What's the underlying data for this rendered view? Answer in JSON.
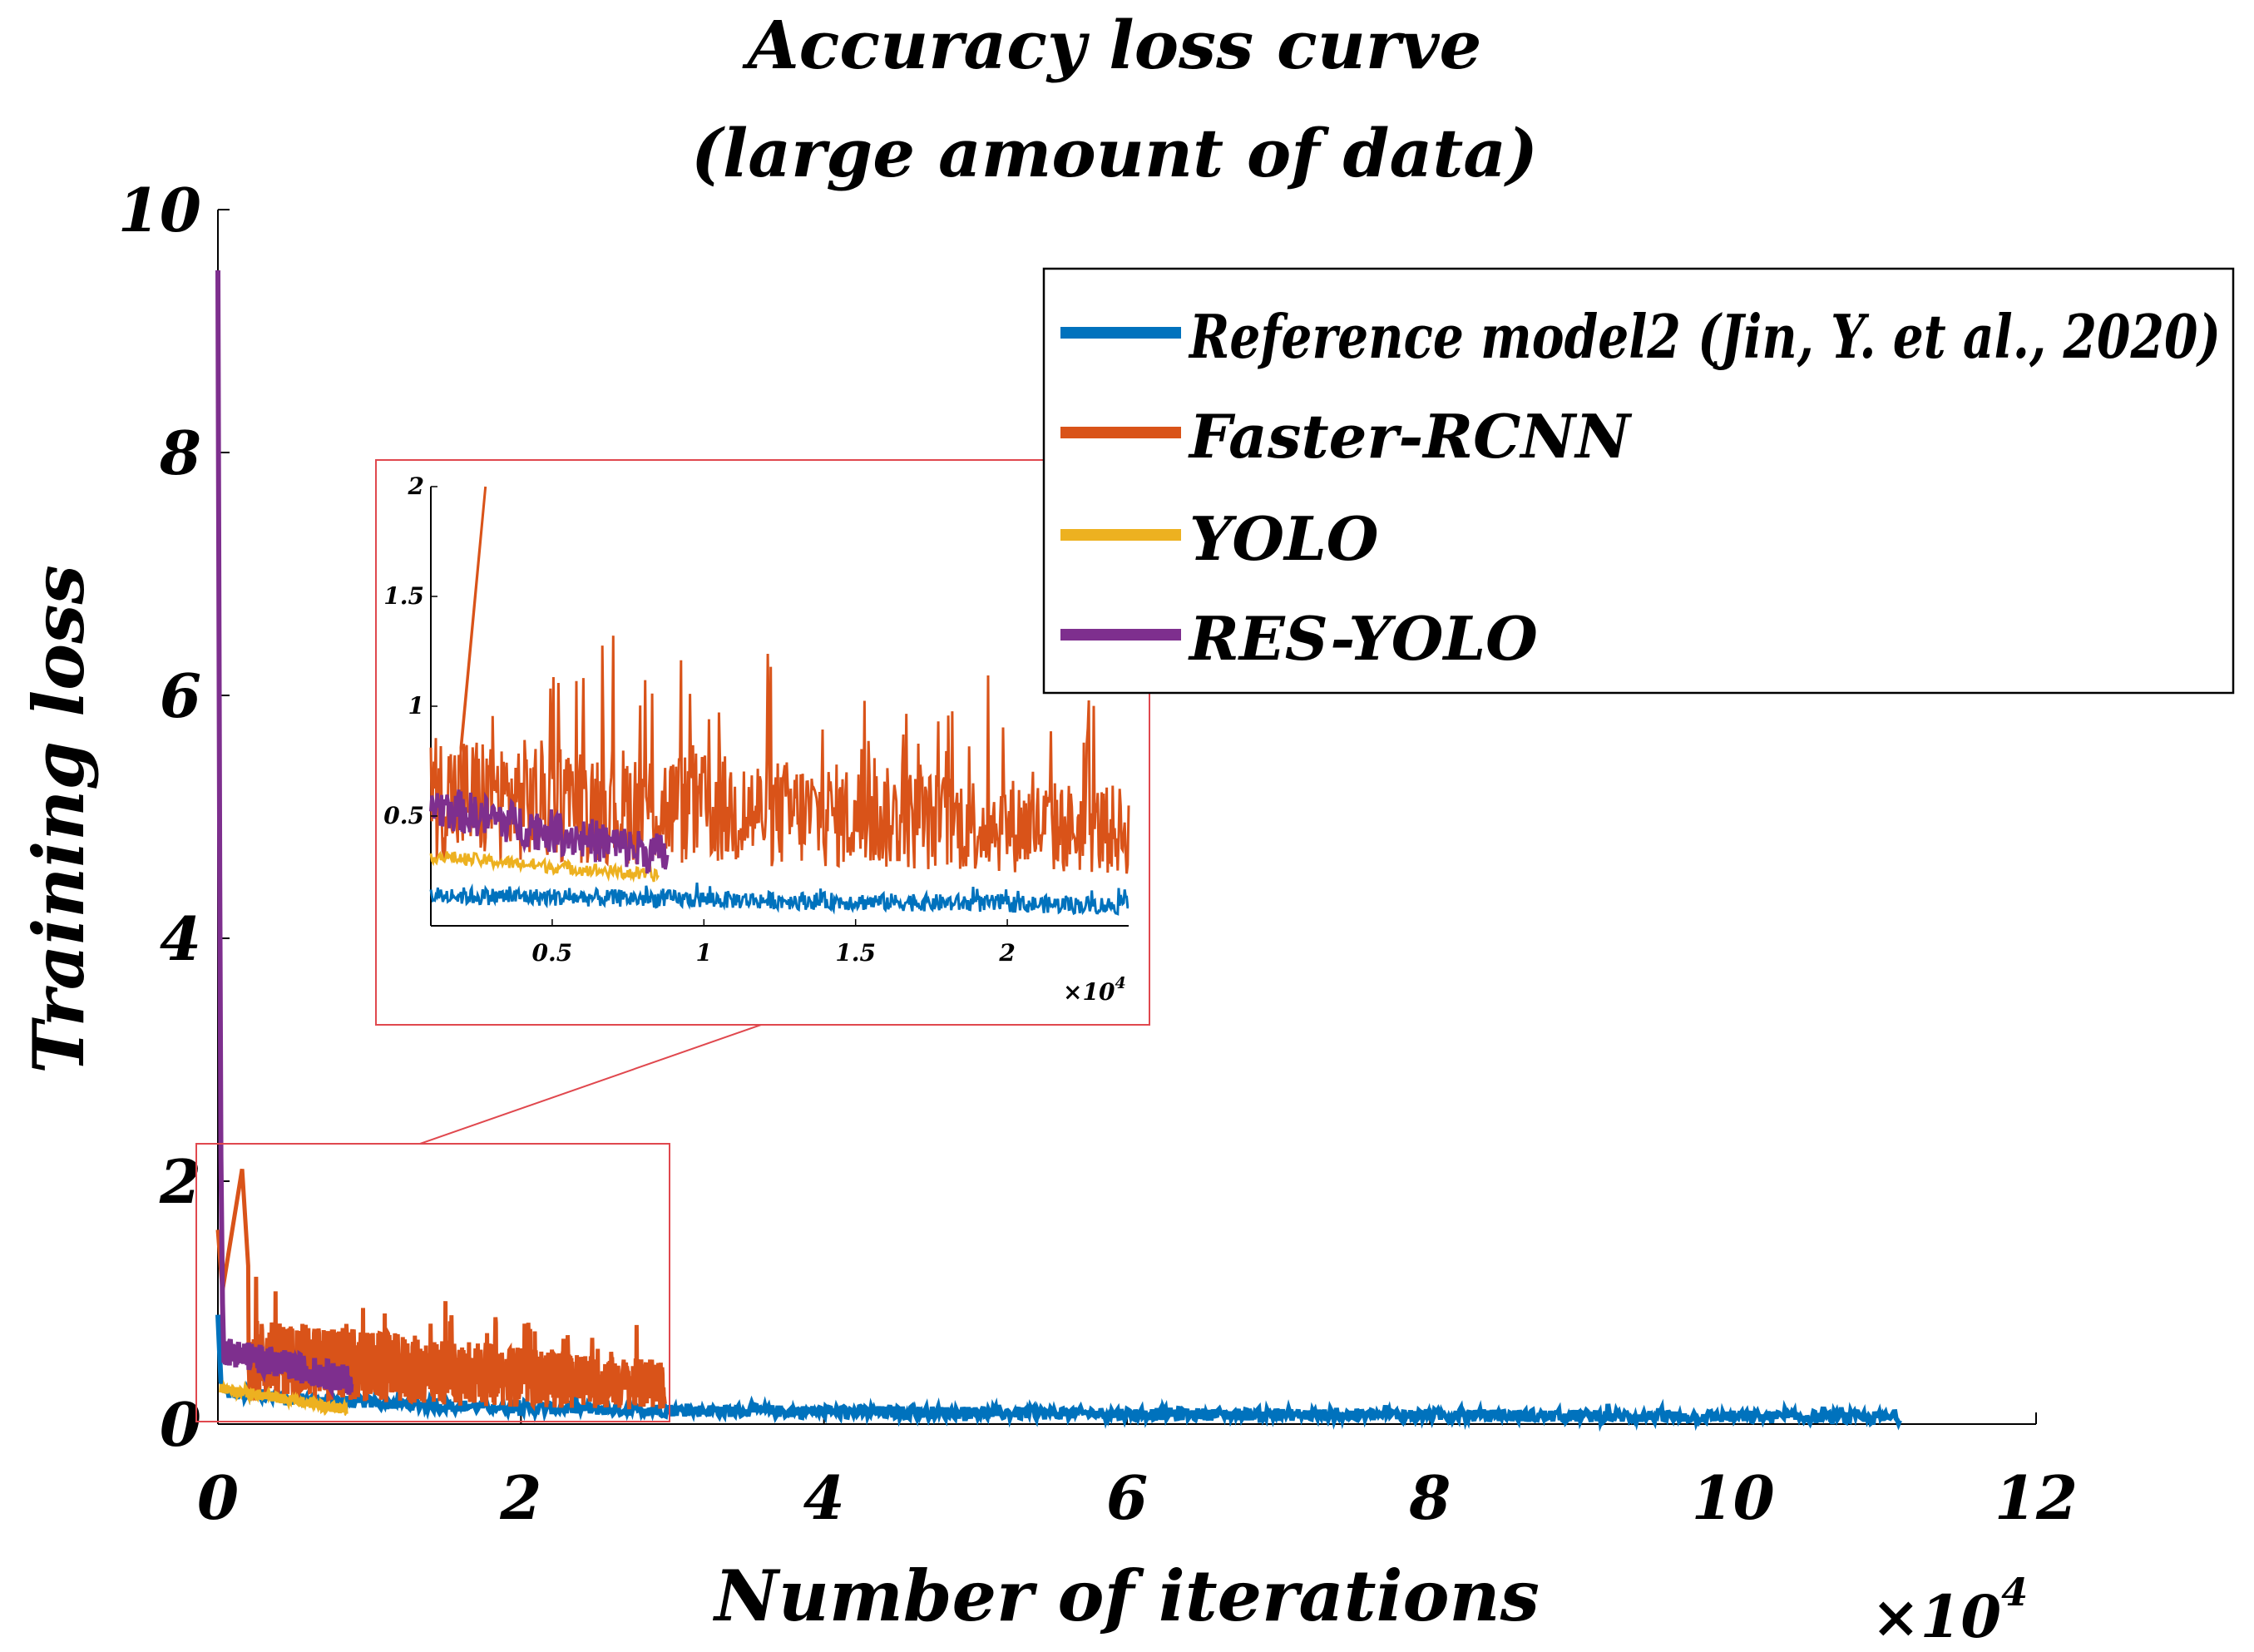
{
  "chart_data": {
    "type": "line",
    "title_lines": [
      "Accuracy loss curve",
      "(large amount of data)"
    ],
    "xlabel": "Number of iterations",
    "ylabel": "Training loss",
    "x_exponent_label": "×10",
    "x_exponent_power": "4",
    "xlim": [
      0,
      12
    ],
    "ylim": [
      0,
      10
    ],
    "xticks": [
      "0",
      "2",
      "4",
      "6",
      "8",
      "10",
      "12"
    ],
    "xtick_values": [
      0,
      2,
      4,
      6,
      8,
      10,
      12
    ],
    "yticks": [
      "0",
      "2",
      "4",
      "6",
      "8",
      "10"
    ],
    "ytick_values": [
      0,
      2,
      4,
      6,
      8,
      10
    ],
    "legend_position": "top-right",
    "colors": {
      "reference": "#0072BD",
      "faster": "#D95319",
      "yolo": "#EDB120",
      "res": "#7E2F8E",
      "zoom": "#E0484E"
    },
    "series": [
      {
        "key": "reference",
        "name": "Reference model2 (Jin, Y. et al., 2020)",
        "x_end": 11.1,
        "start": 0.35,
        "end": 0.05
      },
      {
        "key": "faster",
        "name": "Faster-RCNN",
        "x_end": 2.95,
        "start": 1.2,
        "end": 0.45,
        "peak": [
          0.16,
          2.1
        ]
      },
      {
        "key": "yolo",
        "name": "YOLO",
        "x_end": 0.85,
        "start": 0.3,
        "end": 0.12
      },
      {
        "key": "res",
        "name": "RES-YOLO",
        "x_end": 0.88,
        "start": 9.5,
        "end": 0.35
      }
    ],
    "inset": {
      "xlim": [
        0.1,
        2.4
      ],
      "ylim": [
        0,
        2
      ],
      "xticks": [
        "0.5",
        "1",
        "1.5",
        "2"
      ],
      "xtick_values": [
        0.5,
        1,
        1.5,
        2
      ],
      "yticks": [
        "0.5",
        "1",
        "1.5",
        "2"
      ],
      "ytick_values": [
        0.5,
        1,
        1.5,
        2
      ],
      "exponent_label": "×10",
      "exponent_power": "4"
    }
  }
}
